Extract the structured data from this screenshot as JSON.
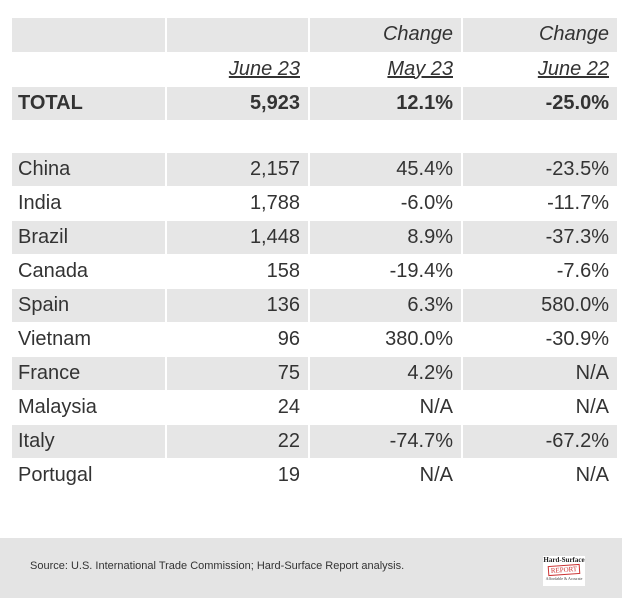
{
  "header": {
    "row1": [
      "",
      "",
      "Change",
      "Change"
    ],
    "row2": [
      "",
      "June 23",
      "May 23",
      "June 22"
    ]
  },
  "total": {
    "label": "TOTAL",
    "june23": "5,923",
    "may23": "12.1%",
    "june22": "-25.0%"
  },
  "rows": [
    {
      "country": "China",
      "june23": "2,157",
      "may23": "45.4%",
      "june22": "-23.5%"
    },
    {
      "country": "India",
      "june23": "1,788",
      "may23": "-6.0%",
      "june22": "-11.7%"
    },
    {
      "country": "Brazil",
      "june23": "1,448",
      "may23": "8.9%",
      "june22": "-37.3%"
    },
    {
      "country": "Canada",
      "june23": "158",
      "may23": "-19.4%",
      "june22": "-7.6%"
    },
    {
      "country": "Spain",
      "june23": "136",
      "may23": "6.3%",
      "june22": "580.0%"
    },
    {
      "country": "Vietnam",
      "june23": "96",
      "may23": "380.0%",
      "june22": "-30.9%"
    },
    {
      "country": "France",
      "june23": "75",
      "may23": "4.2%",
      "june22": "N/A"
    },
    {
      "country": "Malaysia",
      "june23": "24",
      "may23": "N/A",
      "june22": "N/A"
    },
    {
      "country": "Italy",
      "june23": "22",
      "may23": "-74.7%",
      "june22": "-67.2%"
    },
    {
      "country": "Portugal",
      "june23": "19",
      "may23": "N/A",
      "june22": "N/A"
    }
  ],
  "footer": {
    "source": "Source: U.S. International Trade Commission; Hard-Surface Report analysis.",
    "logo": {
      "line1": "Hard-Surface",
      "line2": "REPORT",
      "line3": "Affordable & Accurate"
    }
  }
}
